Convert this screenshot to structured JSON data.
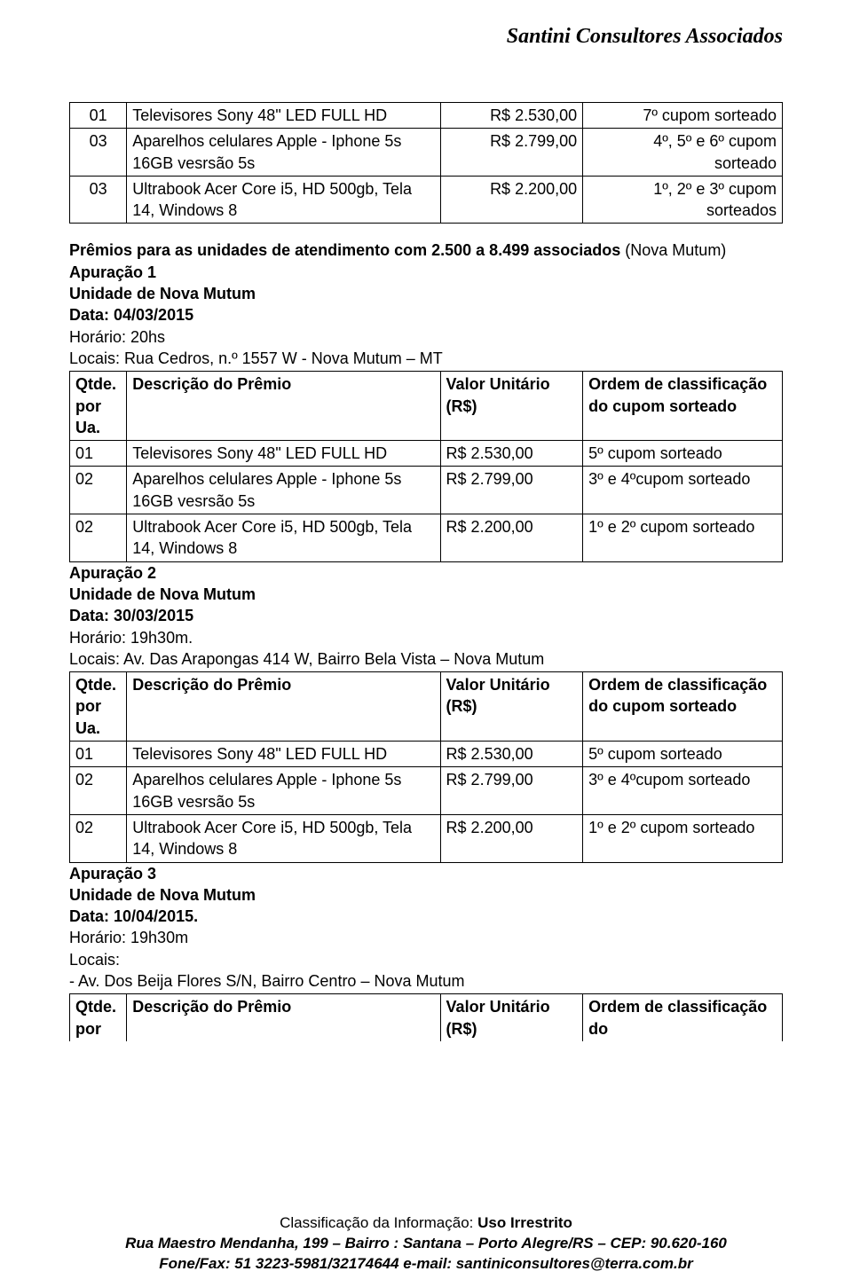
{
  "header": {
    "title": "Santini Consultores Associados"
  },
  "colors": {
    "text": "#000000",
    "background": "#ffffff",
    "border": "#000000"
  },
  "typography": {
    "body_font": "Verdana",
    "header_font": "Times New Roman Italic Bold",
    "body_fontsize": 18,
    "header_fontsize": 24
  },
  "top_table": {
    "rows": [
      {
        "qtde": "01",
        "desc": "Televisores Sony 48\" LED FULL HD",
        "valor": "R$ 2.530,00",
        "ordem": "7º cupom sorteado"
      },
      {
        "qtde": "03",
        "desc": "Aparelhos celulares Apple - Iphone 5s 16GB vesrsão 5s",
        "valor": "R$ 2.799,00",
        "ordem": "4º, 5º e 6º cupom sorteado"
      },
      {
        "qtde": "03",
        "desc": "Ultrabook Acer Core i5, HD 500gb, Tela 14, Windows 8",
        "valor": "R$ 2.200,00",
        "ordem": "1º, 2º e 3º cupom sorteados"
      }
    ]
  },
  "section1": {
    "intro_bold_prefix": "Prêmios para as unidades de atendimento com 2.500 a 8.499 associados",
    "intro_rest": " (Nova Mutum)",
    "apur_title": "Apuração 1",
    "unidade": "Unidade de Nova Mutum",
    "data": "Data: 04/03/2015",
    "horario": "Horário: 20hs",
    "locais": "Locais: Rua Cedros, n.º 1557 W - Nova Mutum – MT"
  },
  "table_header": {
    "c0": "Qtde. por Ua.",
    "c1": "Descrição do Prêmio",
    "c2": "Valor Unitário (R$)",
    "c3": "Ordem de classificação do cupom sorteado"
  },
  "table_header_short": {
    "c0": "Qtde. por",
    "c1": "Descrição do Prêmio",
    "c2": "Valor Unitário (R$)",
    "c3": "Ordem de classificação do"
  },
  "table1": {
    "rows": [
      {
        "qtde": "01",
        "desc": "Televisores Sony 48\" LED FULL HD",
        "valor": "R$ 2.530,00",
        "ordem": "5º cupom sorteado"
      },
      {
        "qtde": "02",
        "desc": "Aparelhos celulares Apple - Iphone 5s 16GB vesrsão 5s",
        "valor": "R$ 2.799,00",
        "ordem": "3º e 4ºcupom sorteado"
      },
      {
        "qtde": "02",
        "desc": "Ultrabook Acer Core i5, HD 500gb, Tela 14, Windows 8",
        "valor": "R$ 2.200,00",
        "ordem": "1º e 2º cupom sorteado"
      }
    ]
  },
  "section2": {
    "apur_title": "Apuração 2",
    "unidade": "Unidade de Nova Mutum",
    "data": "Data: 30/03/2015",
    "horario": "Horário: 19h30m.",
    "locais": "Locais: Av. Das Arapongas 414 W, Bairro Bela Vista – Nova Mutum"
  },
  "table2": {
    "rows": [
      {
        "qtde": "01",
        "desc": "Televisores Sony 48\" LED FULL HD",
        "valor": "R$ 2.530,00",
        "ordem": "5º cupom sorteado"
      },
      {
        "qtde": "02",
        "desc": "Aparelhos celulares Apple - Iphone 5s 16GB vesrsão 5s",
        "valor": "R$ 2.799,00",
        "ordem": "3º e 4ºcupom sorteado"
      },
      {
        "qtde": "02",
        "desc": "Ultrabook Acer Core i5, HD 500gb, Tela 14, Windows 8",
        "valor": "R$ 2.200,00",
        "ordem": "1º e 2º cupom sorteado"
      }
    ]
  },
  "section3": {
    "apur_title": "Apuração 3",
    "unidade": "Unidade de Nova Mutum",
    "data": "Data: 10/04/2015.",
    "horario": "Horário: 19h30m",
    "locais_label": "Locais:",
    "locais_line": "- Av. Dos Beija Flores S/N, Bairro Centro – Nova Mutum"
  },
  "footer": {
    "info_prefix": "Classificação da Informação: ",
    "info_value": "Uso Irrestrito",
    "addr1": "Rua Maestro Mendanha, 199 – Bairro : Santana – Porto Alegre/RS – CEP: 90.620-160",
    "addr2": "Fone/Fax: 51 3223-5981/32174644 e-mail: santiniconsultores@terra.com.br"
  }
}
